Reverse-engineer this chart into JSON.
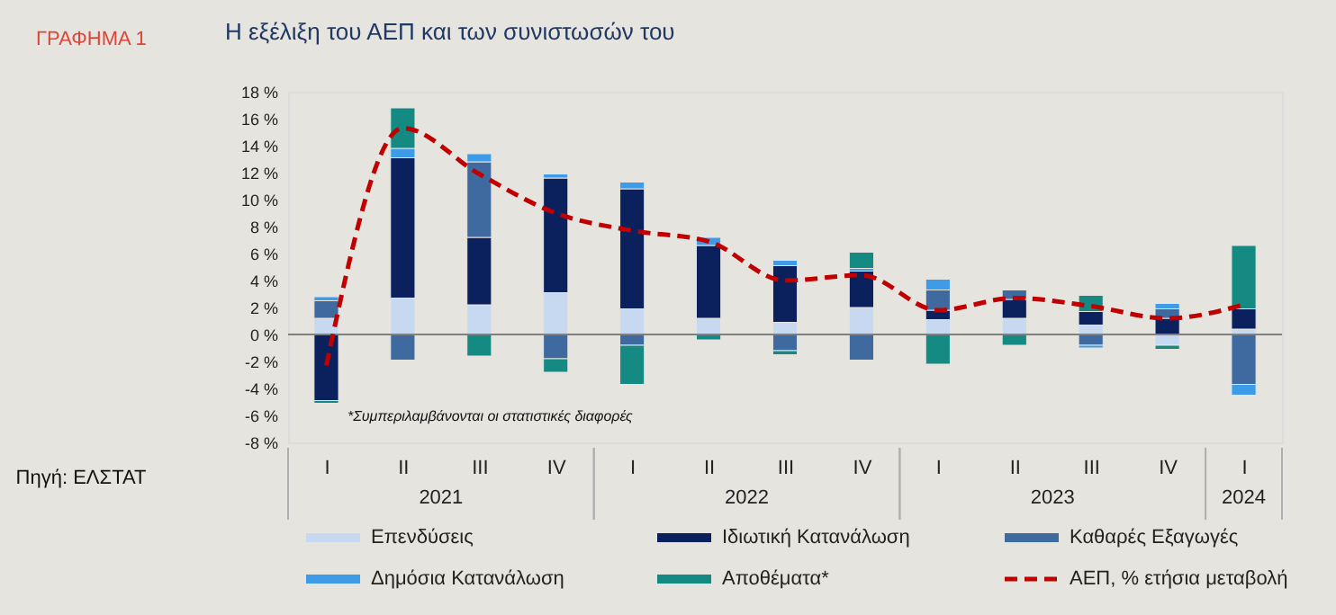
{
  "chart_data": {
    "type": "bar",
    "title": "Η εξέλιξη του ΑΕΠ και των συνιστωσών του",
    "categories": [
      "I",
      "II",
      "III",
      "IV",
      "I",
      "II",
      "III",
      "IV",
      "I",
      "II",
      "III",
      "IV",
      "I"
    ],
    "stacked": true,
    "series": [
      {
        "name": "Επενδύσεις",
        "color": "#c6d9f0",
        "values": [
          1.2,
          2.7,
          2.2,
          3.1,
          1.9,
          1.2,
          0.9,
          2.0,
          1.1,
          1.2,
          0.7,
          -0.8,
          0.4
        ]
      },
      {
        "name": "Ιδιωτική Κατανάλωση",
        "color": "#0b215e",
        "values": [
          -4.9,
          10.4,
          5.0,
          8.5,
          8.9,
          5.4,
          4.2,
          2.7,
          0.7,
          1.4,
          1.0,
          1.2,
          1.5
        ]
      },
      {
        "name": "Καθαρές Εξαγωγές",
        "color": "#3e6aa0",
        "values": [
          1.3,
          -1.9,
          5.6,
          -1.8,
          -0.8,
          null,
          -1.2,
          -1.9,
          1.5,
          0.7,
          -0.8,
          0.7,
          -3.7
        ]
      },
      {
        "name": "Δημόσια Κατανάλωση",
        "color": "#3d9be8",
        "values": [
          0.3,
          0.7,
          0.6,
          0.3,
          0.5,
          0.6,
          0.4,
          0.2,
          0.8,
          null,
          -0.2,
          0.4,
          -0.8
        ]
      },
      {
        "name": "Αποθέματα*",
        "color": "#148a82",
        "values": [
          -0.2,
          3.0,
          -1.6,
          -1.0,
          -2.9,
          -0.4,
          -0.3,
          1.2,
          -2.2,
          -0.8,
          1.2,
          -0.3,
          4.7
        ]
      },
      {
        "name": "ΑΕΠ, % ετήσια μεταβολή",
        "type": "line",
        "line_style": "dashed",
        "color": "#c00000",
        "values": [
          -2.3,
          15.3,
          11.9,
          9.0,
          7.7,
          6.9,
          4.0,
          4.4,
          1.8,
          2.7,
          2.1,
          1.2,
          2.2
        ]
      }
    ],
    "ylim": [
      -8,
      18
    ],
    "yticks": [
      {
        "value": -8,
        "label": "-8 %"
      },
      {
        "value": -6,
        "label": "-6 %"
      },
      {
        "value": -4,
        "label": "-4 %"
      },
      {
        "value": -2,
        "label": "-2 %"
      },
      {
        "value": 0,
        "label": "0 %"
      },
      {
        "value": 2,
        "label": "2 %"
      },
      {
        "value": 4,
        "label": "4 %"
      },
      {
        "value": 6,
        "label": "6 %"
      },
      {
        "value": 8,
        "label": "8 %"
      },
      {
        "value": 10,
        "label": "10 %"
      },
      {
        "value": 12,
        "label": "12 %"
      },
      {
        "value": 14,
        "label": "14 %"
      },
      {
        "value": 16,
        "label": "16 %"
      },
      {
        "value": 18,
        "label": "18 %"
      }
    ],
    "legend": "bottom",
    "annotations": [
      "ΓΡΑΦΗΜΑ 1",
      "*Συμπεριλαμβάνονται οι στατιστικές διαφορές",
      "Πηγή: ΕΛΣΤΑΤ",
      "2021",
      "2022",
      "2023",
      "2024"
    ]
  }
}
